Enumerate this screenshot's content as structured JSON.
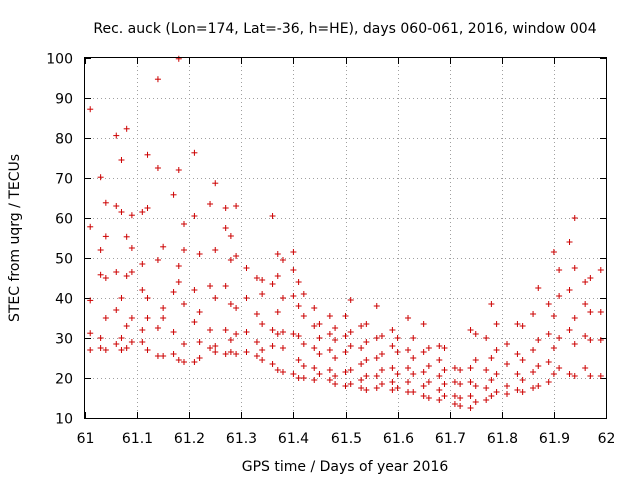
{
  "chart_data": {
    "type": "scatter",
    "title": "Rec. auck (Lon=174, Lat=-36, h=HE), days 060-061, 2016, window 004",
    "xlabel": "GPS time / Days of year 2016",
    "ylabel": "STEC from uqrg / TECUs",
    "xlim": [
      61,
      62
    ],
    "ylim": [
      10,
      100
    ],
    "x_ticks": [
      "61",
      "61.1",
      "61.2",
      "61.3",
      "61.4",
      "61.5",
      "61.6",
      "61.7",
      "61.8",
      "61.9",
      "62"
    ],
    "y_ticks": [
      "10",
      "20",
      "30",
      "40",
      "50",
      "60",
      "70",
      "80",
      "90",
      "100"
    ],
    "grid": true,
    "marker": "plus",
    "marker_color": "#cc0000",
    "series": [
      {
        "points": [
          [
            61.01,
            87.2
          ],
          [
            61.01,
            57.8
          ],
          [
            61.01,
            39.4
          ],
          [
            61.01,
            31.2
          ],
          [
            61.01,
            27.0
          ],
          [
            61.03,
            70.2
          ],
          [
            61.03,
            52.0
          ],
          [
            61.03,
            45.8
          ],
          [
            61.03,
            30.0
          ],
          [
            61.03,
            27.5
          ],
          [
            61.04,
            63.8
          ],
          [
            61.04,
            55.4
          ],
          [
            61.04,
            45.0
          ],
          [
            61.04,
            35.0
          ],
          [
            61.04,
            27.0
          ],
          [
            61.06,
            80.6
          ],
          [
            61.06,
            63.0
          ],
          [
            61.06,
            46.5
          ],
          [
            61.06,
            37.0
          ],
          [
            61.06,
            28.5
          ],
          [
            61.07,
            74.5
          ],
          [
            61.07,
            61.5
          ],
          [
            61.07,
            40.0
          ],
          [
            61.07,
            30.0
          ],
          [
            61.07,
            27.0
          ],
          [
            61.08,
            82.3
          ],
          [
            61.08,
            55.3
          ],
          [
            61.08,
            45.5
          ],
          [
            61.08,
            33.0
          ],
          [
            61.08,
            27.5
          ],
          [
            61.09,
            60.7
          ],
          [
            61.09,
            52.5
          ],
          [
            61.09,
            46.5
          ],
          [
            61.09,
            35.0
          ],
          [
            61.09,
            29.0
          ],
          [
            61.11,
            61.5
          ],
          [
            61.11,
            48.5
          ],
          [
            61.11,
            42.0
          ],
          [
            61.11,
            32.0
          ],
          [
            61.11,
            29.0
          ],
          [
            61.12,
            75.8
          ],
          [
            61.12,
            62.5
          ],
          [
            61.12,
            40.0
          ],
          [
            61.12,
            35.0
          ],
          [
            61.12,
            27.0
          ],
          [
            61.14,
            94.7
          ],
          [
            61.14,
            72.5
          ],
          [
            61.14,
            49.5
          ],
          [
            61.14,
            32.5
          ],
          [
            61.14,
            25.5
          ],
          [
            61.15,
            52.8
          ],
          [
            61.15,
            37.5
          ],
          [
            61.15,
            35.0
          ],
          [
            61.15,
            25.5
          ],
          [
            61.17,
            65.8
          ],
          [
            61.17,
            41.5
          ],
          [
            61.17,
            31.5
          ],
          [
            61.17,
            26.0
          ],
          [
            61.18,
            99.8
          ],
          [
            61.18,
            72.0
          ],
          [
            61.18,
            48.0
          ],
          [
            61.18,
            44.0
          ],
          [
            61.18,
            24.5
          ],
          [
            61.19,
            58.5
          ],
          [
            61.19,
            52.0
          ],
          [
            61.19,
            38.5
          ],
          [
            61.19,
            28.5
          ],
          [
            61.19,
            24.0
          ],
          [
            61.21,
            76.3
          ],
          [
            61.21,
            60.5
          ],
          [
            61.21,
            42.0
          ],
          [
            61.21,
            34.0
          ],
          [
            61.21,
            24.0
          ],
          [
            61.22,
            51.0
          ],
          [
            61.22,
            36.5
          ],
          [
            61.22,
            29.0
          ],
          [
            61.22,
            25.0
          ],
          [
            61.24,
            63.5
          ],
          [
            61.24,
            43.0
          ],
          [
            61.24,
            32.0
          ],
          [
            61.24,
            27.5
          ],
          [
            61.25,
            68.7
          ],
          [
            61.25,
            52.0
          ],
          [
            61.25,
            40.0
          ],
          [
            61.25,
            28.0
          ],
          [
            61.25,
            26.5
          ],
          [
            61.27,
            62.5
          ],
          [
            61.27,
            57.5
          ],
          [
            61.27,
            43.0
          ],
          [
            61.27,
            32.0
          ],
          [
            61.27,
            26.0
          ],
          [
            61.28,
            55.5
          ],
          [
            61.28,
            49.5
          ],
          [
            61.28,
            38.5
          ],
          [
            61.28,
            29.5
          ],
          [
            61.28,
            26.5
          ],
          [
            61.29,
            63.0
          ],
          [
            61.29,
            50.5
          ],
          [
            61.29,
            37.5
          ],
          [
            61.29,
            31.0
          ],
          [
            61.29,
            26.0
          ],
          [
            61.31,
            47.5
          ],
          [
            61.31,
            40.0
          ],
          [
            61.31,
            31.5
          ],
          [
            61.31,
            26.5
          ],
          [
            61.33,
            45.0
          ],
          [
            61.33,
            36.0
          ],
          [
            61.33,
            29.0
          ],
          [
            61.33,
            25.5
          ],
          [
            61.34,
            44.5
          ],
          [
            61.34,
            41.0
          ],
          [
            61.34,
            33.5
          ],
          [
            61.34,
            27.0
          ],
          [
            61.34,
            24.5
          ],
          [
            61.36,
            60.5
          ],
          [
            61.36,
            43.5
          ],
          [
            61.36,
            32.0
          ],
          [
            61.36,
            28.0
          ],
          [
            61.36,
            23.5
          ],
          [
            61.37,
            51.0
          ],
          [
            61.37,
            45.5
          ],
          [
            61.37,
            36.5
          ],
          [
            61.37,
            31.0
          ],
          [
            61.37,
            22.0
          ],
          [
            61.38,
            49.5
          ],
          [
            61.38,
            40.0
          ],
          [
            61.38,
            31.5
          ],
          [
            61.38,
            27.5
          ],
          [
            61.38,
            21.5
          ],
          [
            61.4,
            51.5
          ],
          [
            61.4,
            47.0
          ],
          [
            61.4,
            40.5
          ],
          [
            61.4,
            31.0
          ],
          [
            61.4,
            21.0
          ],
          [
            61.41,
            44.0
          ],
          [
            61.41,
            38.0
          ],
          [
            61.41,
            30.5
          ],
          [
            61.41,
            24.5
          ],
          [
            61.41,
            20.0
          ],
          [
            61.42,
            41.0
          ],
          [
            61.42,
            35.5
          ],
          [
            61.42,
            28.5
          ],
          [
            61.42,
            23.0
          ],
          [
            61.42,
            20.0
          ],
          [
            61.44,
            37.5
          ],
          [
            61.44,
            33.0
          ],
          [
            61.44,
            27.5
          ],
          [
            61.44,
            22.5
          ],
          [
            61.44,
            19.5
          ],
          [
            61.45,
            33.5
          ],
          [
            61.45,
            30.0
          ],
          [
            61.45,
            26.0
          ],
          [
            61.45,
            21.0
          ],
          [
            61.47,
            35.5
          ],
          [
            61.47,
            31.0
          ],
          [
            61.47,
            27.0
          ],
          [
            61.47,
            22.0
          ],
          [
            61.47,
            19.5
          ],
          [
            61.48,
            32.5
          ],
          [
            61.48,
            29.5
          ],
          [
            61.48,
            25.0
          ],
          [
            61.48,
            20.5
          ],
          [
            61.48,
            18.5
          ],
          [
            61.5,
            35.5
          ],
          [
            61.5,
            30.5
          ],
          [
            61.5,
            26.5
          ],
          [
            61.5,
            21.5
          ],
          [
            61.5,
            18.0
          ],
          [
            61.51,
            39.5
          ],
          [
            61.51,
            31.5
          ],
          [
            61.51,
            28.0
          ],
          [
            61.51,
            22.0
          ],
          [
            61.51,
            18.5
          ],
          [
            61.53,
            33.0
          ],
          [
            61.53,
            27.5
          ],
          [
            61.53,
            23.5
          ],
          [
            61.53,
            19.5
          ],
          [
            61.53,
            17.5
          ],
          [
            61.54,
            33.5
          ],
          [
            61.54,
            29.0
          ],
          [
            61.54,
            24.5
          ],
          [
            61.54,
            20.5
          ],
          [
            61.54,
            17.0
          ],
          [
            61.56,
            38.0
          ],
          [
            61.56,
            30.0
          ],
          [
            61.56,
            25.0
          ],
          [
            61.56,
            20.5
          ],
          [
            61.56,
            17.5
          ],
          [
            61.57,
            30.5
          ],
          [
            61.57,
            26.0
          ],
          [
            61.57,
            22.0
          ],
          [
            61.57,
            18.5
          ],
          [
            61.59,
            32.0
          ],
          [
            61.59,
            28.0
          ],
          [
            61.59,
            22.5
          ],
          [
            61.59,
            19.0
          ],
          [
            61.59,
            17.0
          ],
          [
            61.6,
            30.0
          ],
          [
            61.6,
            26.5
          ],
          [
            61.6,
            21.0
          ],
          [
            61.6,
            17.5
          ],
          [
            61.62,
            35.0
          ],
          [
            61.62,
            27.0
          ],
          [
            61.62,
            22.5
          ],
          [
            61.62,
            19.0
          ],
          [
            61.62,
            16.5
          ],
          [
            61.63,
            30.0
          ],
          [
            61.63,
            25.0
          ],
          [
            61.63,
            21.0
          ],
          [
            61.63,
            16.5
          ],
          [
            61.65,
            33.5
          ],
          [
            61.65,
            26.5
          ],
          [
            61.65,
            21.5
          ],
          [
            61.65,
            18.0
          ],
          [
            61.65,
            15.5
          ],
          [
            61.66,
            27.5
          ],
          [
            61.66,
            23.0
          ],
          [
            61.66,
            19.0
          ],
          [
            61.66,
            15.0
          ],
          [
            61.68,
            28.0
          ],
          [
            61.68,
            24.5
          ],
          [
            61.68,
            20.5
          ],
          [
            61.68,
            17.0
          ],
          [
            61.68,
            14.5
          ],
          [
            61.69,
            27.5
          ],
          [
            61.69,
            22.0
          ],
          [
            61.69,
            18.5
          ],
          [
            61.69,
            15.5
          ],
          [
            61.71,
            22.5
          ],
          [
            61.71,
            19.0
          ],
          [
            61.71,
            15.5
          ],
          [
            61.71,
            13.5
          ],
          [
            61.72,
            22.0
          ],
          [
            61.72,
            18.5
          ],
          [
            61.72,
            15.0
          ],
          [
            61.72,
            13.0
          ],
          [
            61.74,
            32.0
          ],
          [
            61.74,
            22.5
          ],
          [
            61.74,
            19.0
          ],
          [
            61.74,
            15.5
          ],
          [
            61.74,
            12.5
          ],
          [
            61.75,
            31.0
          ],
          [
            61.75,
            24.5
          ],
          [
            61.75,
            18.0
          ],
          [
            61.75,
            14.0
          ],
          [
            61.77,
            30.0
          ],
          [
            61.77,
            22.0
          ],
          [
            61.77,
            17.5
          ],
          [
            61.77,
            14.5
          ],
          [
            61.78,
            38.5
          ],
          [
            61.78,
            25.0
          ],
          [
            61.78,
            19.5
          ],
          [
            61.78,
            15.5
          ],
          [
            61.79,
            33.5
          ],
          [
            61.79,
            27.0
          ],
          [
            61.79,
            21.0
          ],
          [
            61.79,
            16.5
          ],
          [
            61.81,
            28.5
          ],
          [
            61.81,
            23.5
          ],
          [
            61.81,
            18.0
          ],
          [
            61.81,
            16.0
          ],
          [
            61.83,
            33.5
          ],
          [
            61.83,
            26.0
          ],
          [
            61.83,
            21.0
          ],
          [
            61.83,
            17.0
          ],
          [
            61.84,
            33.0
          ],
          [
            61.84,
            24.5
          ],
          [
            61.84,
            19.5
          ],
          [
            61.84,
            16.5
          ],
          [
            61.86,
            36.0
          ],
          [
            61.86,
            27.0
          ],
          [
            61.86,
            21.5
          ],
          [
            61.86,
            17.5
          ],
          [
            61.87,
            42.5
          ],
          [
            61.87,
            29.5
          ],
          [
            61.87,
            23.0
          ],
          [
            61.87,
            18.0
          ],
          [
            61.89,
            38.5
          ],
          [
            61.89,
            31.0
          ],
          [
            61.89,
            24.0
          ],
          [
            61.89,
            19.0
          ],
          [
            61.9,
            51.5
          ],
          [
            61.9,
            35.5
          ],
          [
            61.9,
            27.5
          ],
          [
            61.9,
            21.0
          ],
          [
            61.91,
            47.0
          ],
          [
            61.91,
            40.5
          ],
          [
            61.91,
            30.0
          ],
          [
            61.91,
            22.5
          ],
          [
            61.93,
            54.0
          ],
          [
            61.93,
            42.0
          ],
          [
            61.93,
            32.0
          ],
          [
            61.93,
            21.0
          ],
          [
            61.94,
            60.0
          ],
          [
            61.94,
            47.5
          ],
          [
            61.94,
            35.0
          ],
          [
            61.94,
            28.5
          ],
          [
            61.94,
            20.5
          ],
          [
            61.96,
            44.0
          ],
          [
            61.96,
            38.5
          ],
          [
            61.96,
            30.5
          ],
          [
            61.96,
            22.5
          ],
          [
            61.97,
            45.0
          ],
          [
            61.97,
            36.5
          ],
          [
            61.97,
            29.5
          ],
          [
            61.97,
            20.5
          ],
          [
            61.99,
            47.0
          ],
          [
            61.99,
            36.5
          ],
          [
            61.99,
            29.5
          ],
          [
            61.99,
            20.5
          ]
        ]
      }
    ]
  }
}
